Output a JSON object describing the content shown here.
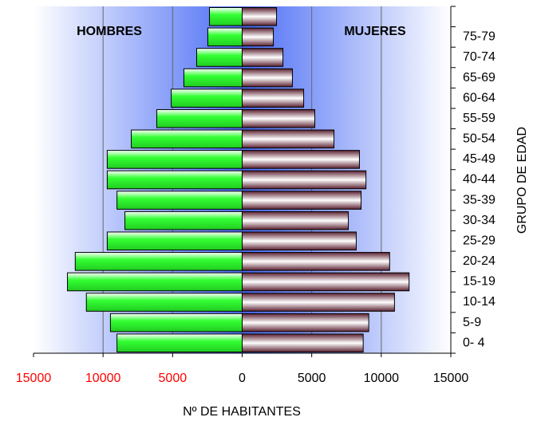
{
  "chart_data": {
    "type": "pyramid",
    "xlabel": "Nº DE HABITANTES",
    "ylabel": "GRUPO DE EDAD",
    "categories": [
      "0- 4",
      "5-9",
      "10-14",
      "15-19",
      "20-24",
      "25-29",
      "30-34",
      "35-39",
      "40-44",
      "45-49",
      "50-54",
      "55-59",
      "60-64",
      "65-69",
      "70-74",
      "75-79",
      null
    ],
    "series": [
      {
        "name": "HOMBRES",
        "side": "left",
        "color": "#33ff33",
        "values": [
          9000,
          9470,
          11200,
          12560,
          12000,
          9700,
          8430,
          9000,
          9700,
          9700,
          7970,
          6140,
          5100,
          4190,
          3270,
          2470,
          2350
        ]
      },
      {
        "name": "MUJERES",
        "side": "right",
        "color": "#8b4a5a",
        "values": [
          8700,
          9100,
          10950,
          12000,
          10600,
          8200,
          7630,
          8550,
          8900,
          8430,
          6600,
          5220,
          4420,
          3610,
          2930,
          2240,
          2470
        ]
      }
    ],
    "xlim": [
      -15000,
      15000
    ],
    "xticks": [
      {
        "value": -15000,
        "label": "15000"
      },
      {
        "value": -10000,
        "label": "10000"
      },
      {
        "value": -5000,
        "label": "5000"
      },
      0,
      5000,
      10000,
      15000
    ],
    "negative_tick_color": "#ff0000",
    "grid": true
  }
}
